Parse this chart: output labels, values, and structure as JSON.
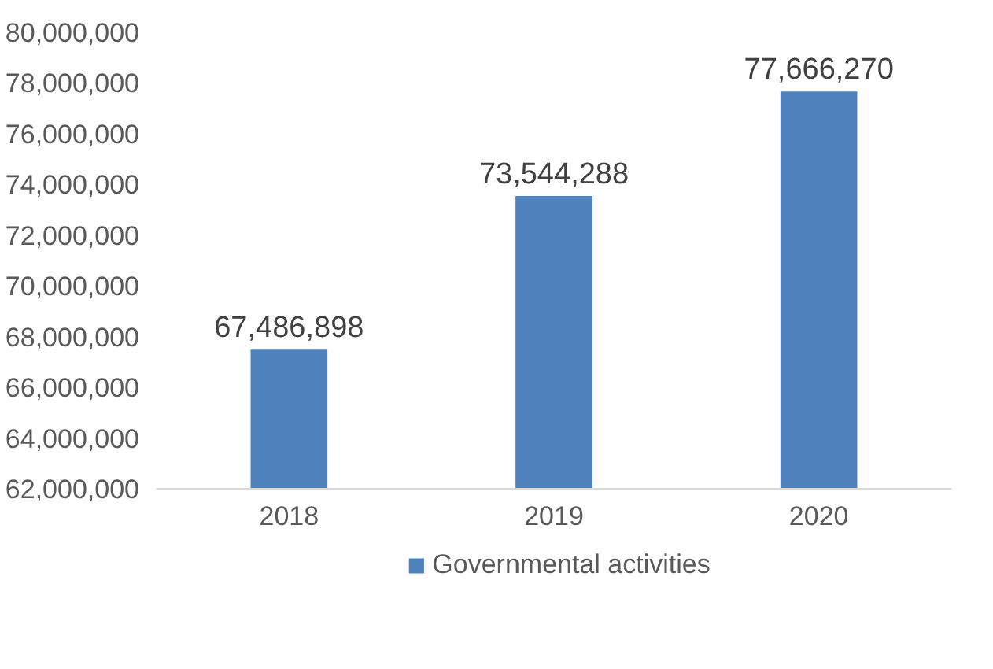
{
  "chart_data": {
    "type": "bar",
    "categories": [
      "2018",
      "2019",
      "2020"
    ],
    "series": [
      {
        "name": "Governmental activities",
        "color": "#4f81bd",
        "values": [
          67486898,
          73544288,
          77666270
        ],
        "value_labels": [
          "67,486,898",
          "73,544,288",
          "77,666,270"
        ]
      }
    ],
    "ylim": [
      62000000,
      80000000
    ],
    "yticks": [
      {
        "value": 62000000,
        "label": "62,000,000"
      },
      {
        "value": 64000000,
        "label": "64,000,000"
      },
      {
        "value": 66000000,
        "label": "66,000,000"
      },
      {
        "value": 68000000,
        "label": "68,000,000"
      },
      {
        "value": 70000000,
        "label": "70,000,000"
      },
      {
        "value": 72000000,
        "label": "72,000,000"
      },
      {
        "value": 74000000,
        "label": "74,000,000"
      },
      {
        "value": 76000000,
        "label": "76,000,000"
      },
      {
        "value": 78000000,
        "label": "78,000,000"
      },
      {
        "value": 80000000,
        "label": "80,000,000"
      }
    ],
    "grid": false,
    "legend": "bottom"
  }
}
